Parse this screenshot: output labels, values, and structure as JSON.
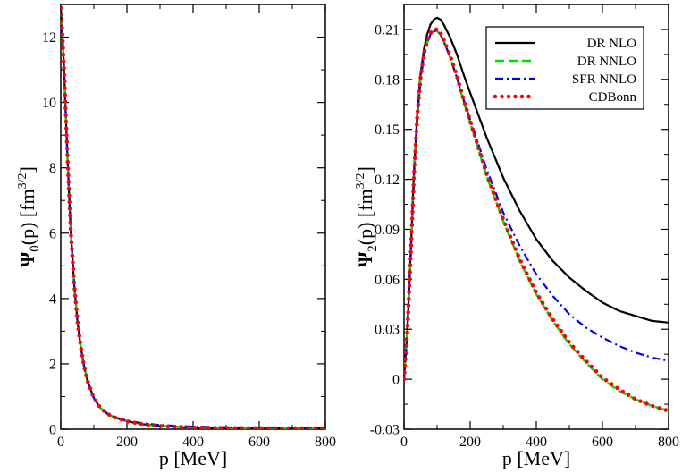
{
  "chart_data": [
    {
      "type": "line",
      "ylabel": {
        "main": "Ψ",
        "sub": "0",
        "mid": "(p) [fm",
        "sup": "3/2",
        "end": "]"
      },
      "xlabel": "p [MeV]",
      "xlim": [
        0,
        800
      ],
      "ylim": [
        0,
        13
      ],
      "xticks": [
        0,
        200,
        400,
        600,
        800
      ],
      "xtick_labels": [
        "0",
        "200",
        "400",
        "600",
        "800"
      ],
      "yticks": [
        0,
        2,
        4,
        6,
        8,
        10,
        12
      ],
      "ytick_labels": [
        "0",
        "2",
        "4",
        "6",
        "8",
        "10",
        "12"
      ],
      "series": [
        {
          "name": "DR NLO",
          "color": "#000000",
          "style": "solid",
          "x": [
            0,
            5,
            10,
            15,
            20,
            25,
            30,
            40,
            50,
            60,
            70,
            80,
            100,
            120,
            140,
            160,
            200,
            250,
            300,
            350,
            400,
            500,
            600,
            700,
            800
          ],
          "y": [
            12.9,
            12.1,
            11.0,
            9.7,
            8.4,
            7.2,
            6.1,
            4.5,
            3.35,
            2.55,
            1.95,
            1.5,
            0.95,
            0.65,
            0.48,
            0.37,
            0.24,
            0.15,
            0.1,
            0.07,
            0.05,
            0.035,
            0.03,
            0.03,
            0.03
          ]
        },
        {
          "name": "DR NNLO",
          "color": "#00dd00",
          "style": "dashed",
          "x": [
            0,
            5,
            10,
            15,
            20,
            25,
            30,
            40,
            50,
            60,
            70,
            80,
            100,
            120,
            140,
            160,
            200,
            250,
            300,
            350,
            400,
            500,
            600,
            700,
            800
          ],
          "y": [
            12.9,
            12.1,
            11.0,
            9.7,
            8.4,
            7.2,
            6.1,
            4.5,
            3.35,
            2.55,
            1.95,
            1.5,
            0.95,
            0.65,
            0.48,
            0.37,
            0.24,
            0.15,
            0.1,
            0.07,
            0.05,
            0.035,
            0.03,
            0.03,
            0.03
          ]
        },
        {
          "name": "SFR NNLO",
          "color": "#0000ee",
          "style": "dashdot",
          "x": [
            0,
            5,
            10,
            15,
            20,
            25,
            30,
            40,
            50,
            60,
            70,
            80,
            100,
            120,
            140,
            160,
            200,
            250,
            300,
            350,
            400,
            500,
            600,
            700,
            800
          ],
          "y": [
            12.9,
            12.1,
            11.0,
            9.7,
            8.4,
            7.2,
            6.1,
            4.5,
            3.35,
            2.55,
            1.95,
            1.5,
            0.95,
            0.66,
            0.49,
            0.38,
            0.26,
            0.18,
            0.13,
            0.1,
            0.08,
            0.06,
            0.05,
            0.05,
            0.05
          ]
        },
        {
          "name": "CDBonn",
          "color": "#ff0000",
          "style": "dotted",
          "x": [
            0,
            5,
            10,
            15,
            20,
            25,
            30,
            40,
            50,
            60,
            70,
            80,
            100,
            120,
            140,
            160,
            200,
            250,
            300,
            350,
            400,
            500,
            600,
            700,
            800
          ],
          "y": [
            12.9,
            12.1,
            11.0,
            9.7,
            8.4,
            7.2,
            6.1,
            4.5,
            3.35,
            2.55,
            1.95,
            1.5,
            0.95,
            0.65,
            0.48,
            0.37,
            0.24,
            0.15,
            0.1,
            0.07,
            0.05,
            0.035,
            0.03,
            0.03,
            0.03
          ]
        }
      ]
    },
    {
      "type": "line",
      "ylabel": {
        "main": "Ψ",
        "sub": "2",
        "mid": "(p) [fm",
        "sup": "3/2",
        "end": "]"
      },
      "xlabel": "p [MeV]",
      "xlim": [
        0,
        800
      ],
      "ylim": [
        -0.03,
        0.225
      ],
      "xticks": [
        0,
        200,
        400,
        600,
        800
      ],
      "xtick_labels": [
        "0",
        "200",
        "400",
        "600",
        "800"
      ],
      "yticks": [
        -0.03,
        0,
        0.03,
        0.06,
        0.09,
        0.12,
        0.15,
        0.18,
        0.21
      ],
      "ytick_labels": [
        "-0.03",
        "0",
        "0.03",
        "0.06",
        "0.09",
        "0.12",
        "0.15",
        "0.18",
        "0.21"
      ],
      "legend": {
        "position": "top-right",
        "entries": [
          "DR NLO",
          "DR NNLO",
          "SFR NNLO",
          "CDBonn"
        ]
      },
      "series": [
        {
          "name": "DR NLO",
          "color": "#000000",
          "style": "solid",
          "x": [
            0,
            10,
            20,
            30,
            40,
            50,
            60,
            70,
            80,
            90,
            100,
            110,
            120,
            140,
            160,
            180,
            200,
            250,
            300,
            350,
            400,
            450,
            500,
            550,
            600,
            650,
            700,
            750,
            800
          ],
          "y": [
            0,
            0.03,
            0.075,
            0.125,
            0.16,
            0.183,
            0.198,
            0.207,
            0.213,
            0.216,
            0.217,
            0.216,
            0.213,
            0.205,
            0.195,
            0.183,
            0.172,
            0.145,
            0.121,
            0.101,
            0.084,
            0.071,
            0.061,
            0.053,
            0.046,
            0.041,
            0.038,
            0.035,
            0.034
          ]
        },
        {
          "name": "DR NNLO",
          "color": "#00dd00",
          "style": "dashed",
          "x": [
            0,
            10,
            20,
            30,
            40,
            50,
            60,
            70,
            80,
            90,
            100,
            110,
            120,
            140,
            160,
            180,
            200,
            250,
            300,
            350,
            400,
            450,
            500,
            550,
            600,
            650,
            700,
            750,
            800
          ],
          "y": [
            0,
            0.029,
            0.073,
            0.122,
            0.157,
            0.18,
            0.194,
            0.202,
            0.207,
            0.209,
            0.209,
            0.207,
            0.203,
            0.193,
            0.181,
            0.167,
            0.154,
            0.122,
            0.095,
            0.071,
            0.051,
            0.035,
            0.021,
            0.01,
            0.0,
            -0.007,
            -0.012,
            -0.016,
            -0.019
          ]
        },
        {
          "name": "SFR NNLO",
          "color": "#0000ee",
          "style": "dashdot",
          "x": [
            0,
            10,
            20,
            30,
            40,
            50,
            60,
            70,
            80,
            90,
            100,
            110,
            120,
            140,
            160,
            180,
            200,
            250,
            300,
            350,
            400,
            450,
            500,
            550,
            600,
            650,
            700,
            750,
            800
          ],
          "y": [
            0,
            0.029,
            0.073,
            0.122,
            0.157,
            0.18,
            0.194,
            0.202,
            0.207,
            0.209,
            0.209,
            0.207,
            0.203,
            0.193,
            0.181,
            0.168,
            0.156,
            0.126,
            0.1,
            0.08,
            0.063,
            0.05,
            0.039,
            0.031,
            0.025,
            0.02,
            0.016,
            0.013,
            0.011
          ]
        },
        {
          "name": "CDBonn",
          "color": "#ff0000",
          "style": "dotted",
          "x": [
            0,
            10,
            20,
            30,
            40,
            50,
            60,
            70,
            80,
            90,
            100,
            110,
            120,
            140,
            160,
            180,
            200,
            250,
            300,
            350,
            400,
            450,
            500,
            550,
            600,
            650,
            700,
            750,
            800
          ],
          "y": [
            0,
            0.029,
            0.073,
            0.122,
            0.158,
            0.181,
            0.195,
            0.203,
            0.208,
            0.21,
            0.21,
            0.208,
            0.204,
            0.194,
            0.182,
            0.168,
            0.155,
            0.123,
            0.096,
            0.072,
            0.052,
            0.036,
            0.022,
            0.011,
            0.001,
            -0.006,
            -0.012,
            -0.016,
            -0.019
          ]
        }
      ]
    }
  ]
}
